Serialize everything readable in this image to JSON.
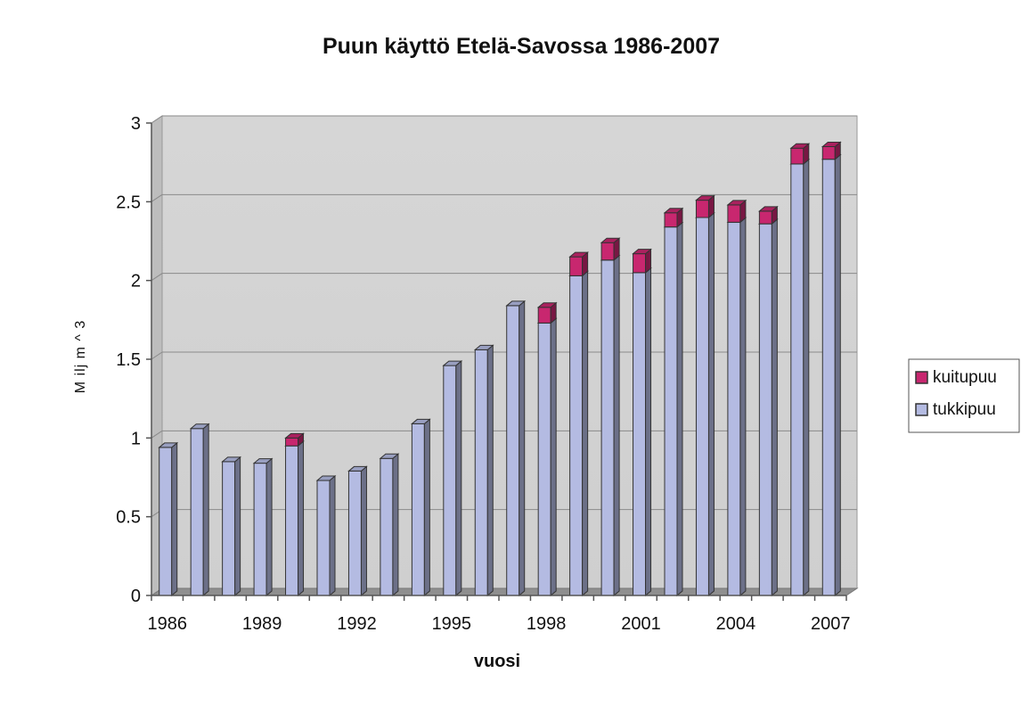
{
  "chart_data": {
    "type": "bar",
    "stacked": true,
    "title": "Puun käyttö Etelä-Savossa 1986-2007",
    "xlabel": "vuosi",
    "ylabel": "M ilj m ^ 3",
    "ylim": [
      0,
      3
    ],
    "yticks": [
      "0",
      "0.5",
      "1",
      "1.5",
      "2",
      "2.5",
      "3"
    ],
    "grid": true,
    "legend_position": "right",
    "categories": [
      "1986",
      "1987",
      "1988",
      "1989",
      "1990",
      "1991",
      "1992",
      "1993",
      "1994",
      "1995",
      "1996",
      "1997",
      "1998",
      "1999",
      "2000",
      "2001",
      "2002",
      "2003",
      "2004",
      "2005",
      "2006",
      "2007"
    ],
    "xtick_labels": [
      "1986",
      "",
      "",
      "1989",
      "",
      "",
      "1992",
      "",
      "",
      "1995",
      "",
      "",
      "1998",
      "",
      "",
      "2001",
      "",
      "",
      "2004",
      "",
      "",
      "2007"
    ],
    "series": [
      {
        "name": "tukkipuu",
        "color": "#b4bbe2",
        "values": [
          0.94,
          1.06,
          0.85,
          0.84,
          0.95,
          0.73,
          0.79,
          0.87,
          1.09,
          1.46,
          1.56,
          1.84,
          1.73,
          2.03,
          2.13,
          2.05,
          2.34,
          2.4,
          2.37,
          2.36,
          2.74,
          2.77
        ]
      },
      {
        "name": "kuitupuu",
        "color": "#c8276f",
        "values": [
          0,
          0,
          0,
          0,
          0.05,
          0,
          0,
          0,
          0,
          0,
          0,
          0,
          0.1,
          0.12,
          0.11,
          0.12,
          0.09,
          0.11,
          0.11,
          0.08,
          0.1,
          0.08
        ]
      }
    ]
  }
}
